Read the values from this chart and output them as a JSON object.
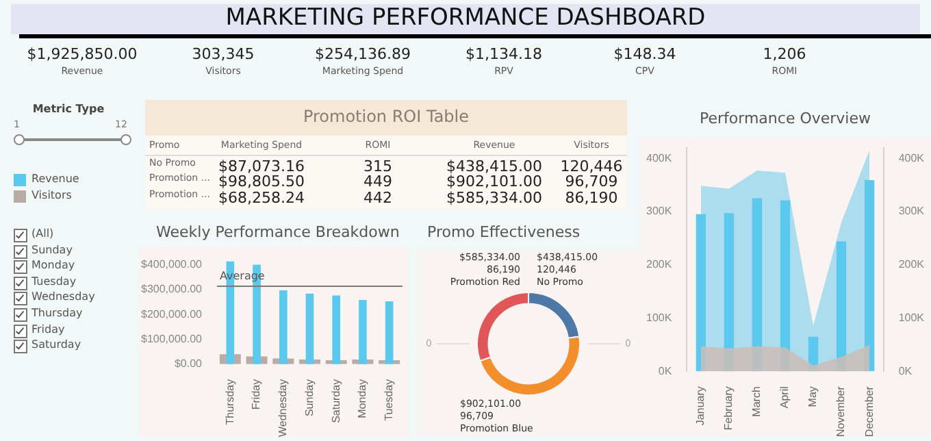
{
  "chart_data": [
    {
      "type": "other",
      "title": "MARKETING PERFORMANCE DASHBOARD",
      "annotations": [
        "$1,925,850.00",
        "Revenue",
        "303,345",
        "Visitors",
        "$254,136.89",
        "Marketing Spend",
        "$1,134.18",
        "RPV",
        "$148.34",
        "CPV",
        "1,206",
        "ROMI"
      ]
    },
    {
      "type": "other",
      "title": "Metric Type",
      "annotations": [
        "1",
        "12",
        "(All)",
        "Sunday",
        "Monday",
        "Tuesday",
        "Wednesday",
        "Thursday",
        "Friday",
        "Saturday"
      ]
    },
    {
      "type": "other",
      "title": "Promotion ROI Table",
      "annotations": [
        "Promo",
        "Marketing Spend",
        "ROMI",
        "Revenue",
        "Visitors",
        "No Promo",
        "$87,073.16",
        "315",
        "$438,415.00",
        "120,446",
        "Promotion ...",
        "$98,805.50",
        "449",
        "$902,101.00",
        "96,709",
        "Promotion ...",
        "$68,258.24",
        "442",
        "$585,334.00",
        "86,190"
      ]
    },
    {
      "type": "bar",
      "title": "Weekly Performance Breakdown",
      "categories": [
        "Thursday",
        "Friday",
        "Wednesday",
        "Sunday",
        "Saturday",
        "Monday",
        "Tuesday"
      ],
      "series": [
        {
          "name": "Revenue",
          "color": "#5bc8ee",
          "values": [
            413000,
            400000,
            297000,
            284000,
            276000,
            258000,
            253000
          ]
        },
        {
          "name": "Visitors",
          "color": "#b9aca6",
          "values": [
            40000,
            31000,
            23000,
            19000,
            16000,
            19000,
            16000
          ]
        }
      ],
      "ylim": [
        0,
        430000
      ],
      "yticks": [
        {
          "value": 0,
          "label": "$0.00"
        },
        {
          "value": 100000,
          "label": "$100,000.00"
        },
        {
          "value": 200000,
          "label": "$200,000.00"
        },
        {
          "value": 300000,
          "label": "$300,000.00"
        },
        {
          "value": 400000,
          "label": "$400,000.00"
        }
      ],
      "ref_lines": [
        {
          "axis": "y",
          "value": 313000,
          "label": "Average",
          "color": "#7a7a7a"
        }
      ],
      "legend": "left"
    },
    {
      "type": "donut",
      "title": "Promo Effectiveness",
      "categories": [
        "No Promo",
        "Promotion Blue",
        "Promotion Red"
      ],
      "values": [
        438415,
        902101,
        585334
      ],
      "colors": [
        "#4e79a7",
        "#f28e2b",
        "#e15759"
      ],
      "value_labels": [
        "$438,415.00\n120,446",
        "$902,101.00\n96,709",
        "$585,334.00\n86,190"
      ],
      "annotations": [
        "0",
        "0"
      ]
    },
    {
      "type": "bar",
      "title": "Performance Overview",
      "categories": [
        "January",
        "February",
        "March",
        "April",
        "May",
        "November",
        "December"
      ],
      "series": [
        {
          "type": "area",
          "color": "#9fd9ef",
          "values": [
            348000,
            343000,
            377000,
            373000,
            86000,
            280000,
            415000
          ]
        },
        {
          "color": "#5bc8ee",
          "values": [
            295000,
            297000,
            325000,
            321000,
            65000,
            244000,
            359000
          ]
        },
        {
          "type": "area",
          "color": "#cbbdb8",
          "values": [
            47000,
            43000,
            47000,
            45000,
            11000,
            27000,
            49000
          ]
        }
      ],
      "ylim": [
        0,
        420000
      ],
      "yticks": [
        {
          "value": 0,
          "label": "0K"
        },
        {
          "value": 100000,
          "label": "100K"
        },
        {
          "value": 200000,
          "label": "200K"
        },
        {
          "value": 300000,
          "label": "300K"
        },
        {
          "value": 400000,
          "label": "400K"
        }
      ],
      "y2lim": [
        0,
        420000
      ],
      "y2ticks": [
        {
          "value": 0,
          "label": "0K"
        },
        {
          "value": 100000,
          "label": "100K"
        },
        {
          "value": 200000,
          "label": "200K"
        },
        {
          "value": 300000,
          "label": "300K"
        },
        {
          "value": 400000,
          "label": "400K"
        }
      ]
    }
  ]
}
